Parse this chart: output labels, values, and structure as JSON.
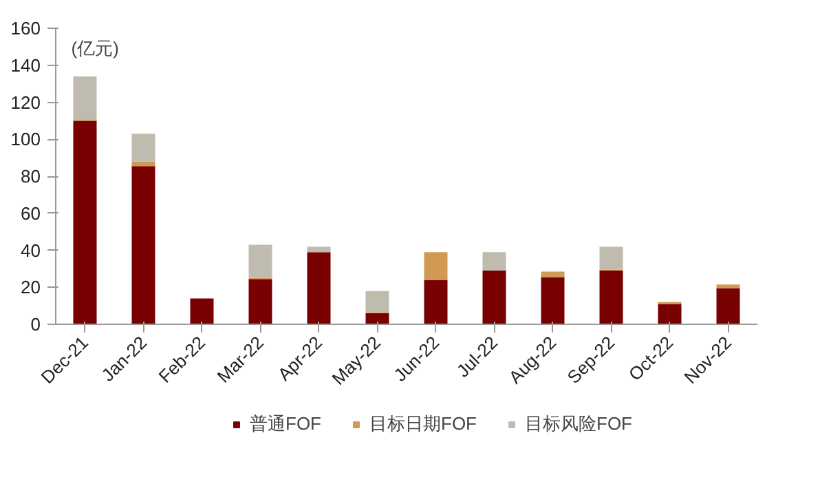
{
  "chart_data": {
    "type": "bar",
    "stacked": true,
    "annotations": [
      "(亿元)"
    ],
    "categories": [
      "Dec-21",
      "Jan-22",
      "Feb-22",
      "Mar-22",
      "Apr-22",
      "May-22",
      "Jun-22",
      "Jul-22",
      "Aug-22",
      "Sep-22",
      "Oct-22",
      "Nov-22"
    ],
    "series": [
      {
        "name": "普通FOF",
        "color": "#780000",
        "values": [
          110,
          85.5,
          14,
          24.5,
          39,
          6,
          24,
          29,
          25.5,
          29,
          11,
          19.5
        ]
      },
      {
        "name": "目标日期FOF",
        "color": "#d09a55",
        "values": [
          0.5,
          2.5,
          0,
          0.5,
          0,
          0.5,
          15,
          0,
          3,
          0.5,
          1,
          2
        ]
      },
      {
        "name": "目标风险FOF",
        "color": "#bfbcaf",
        "values": [
          23.5,
          15,
          0,
          18,
          3,
          11.5,
          0,
          10,
          0,
          12.5,
          0,
          0
        ]
      }
    ],
    "ylim": [
      0,
      160
    ],
    "yticks": [
      0,
      20,
      40,
      60,
      80,
      100,
      120,
      140,
      160
    ],
    "grid": false,
    "legend": "bottom"
  }
}
